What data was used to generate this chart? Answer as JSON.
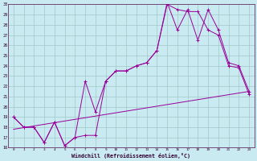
{
  "xlabel": "Windchill (Refroidissement éolien,°C)",
  "bg_color": "#c8eaf0",
  "grid_color": "#a0c8c8",
  "line_color": "#990099",
  "xlim": [
    -0.5,
    23.5
  ],
  "ylim": [
    16,
    30
  ],
  "xticks": [
    0,
    1,
    2,
    3,
    4,
    5,
    6,
    7,
    8,
    9,
    10,
    11,
    12,
    13,
    14,
    15,
    16,
    17,
    18,
    19,
    20,
    21,
    22,
    23
  ],
  "yticks": [
    16,
    17,
    18,
    19,
    20,
    21,
    22,
    23,
    24,
    25,
    26,
    27,
    28,
    29,
    30
  ],
  "series1_x": [
    0,
    1,
    2,
    3,
    4,
    5,
    6,
    7,
    8,
    9,
    10,
    11,
    12,
    13,
    14,
    15,
    16,
    17,
    18,
    19,
    20,
    21,
    22,
    23
  ],
  "series1_y": [
    19.0,
    18.0,
    18.0,
    16.5,
    18.5,
    16.2,
    17.0,
    17.2,
    17.2,
    22.5,
    23.5,
    23.5,
    24.0,
    24.3,
    25.5,
    30.0,
    29.5,
    29.3,
    29.3,
    27.5,
    27.0,
    24.0,
    23.8,
    21.2
  ],
  "series2_x": [
    0,
    1,
    2,
    3,
    4,
    5,
    6,
    7,
    8,
    9,
    10,
    11,
    12,
    13,
    14,
    15,
    16,
    17,
    18,
    19,
    20,
    21,
    22,
    23
  ],
  "series2_y": [
    19.0,
    18.0,
    18.0,
    16.5,
    18.5,
    16.2,
    17.0,
    22.5,
    19.5,
    22.5,
    23.5,
    23.5,
    24.0,
    24.3,
    25.5,
    30.2,
    27.5,
    29.5,
    26.5,
    29.5,
    27.5,
    24.3,
    24.0,
    21.5
  ],
  "series3_x": [
    0,
    23
  ],
  "series3_y": [
    17.8,
    21.5
  ]
}
